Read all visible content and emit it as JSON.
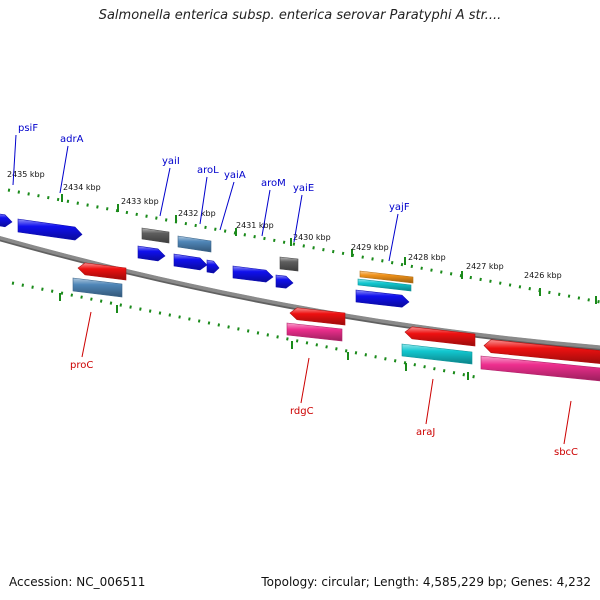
{
  "title": "Salmonella enterica subsp. enterica serovar Paratyphi A str....",
  "footer": {
    "accession": "Accession: NC_006511",
    "summary": "Topology: circular; Length: 4,585,229 bp; Genes: 4,232"
  },
  "colors": {
    "forward_label": "#0000cc",
    "reverse_label": "#cc0000",
    "backbone": "#8a8a8a",
    "scale_ticks": "#1a8a1a",
    "blue": "#1010ee",
    "steel": "#4f86b8",
    "gray": "#5e5e5e",
    "red": "#ee1111",
    "pink": "#ee2f8e",
    "cyan": "#12c8d0",
    "orange": "#f0921a"
  },
  "scale_labels": [
    "2435 kbp",
    "2434 kbp",
    "2433 kbp",
    "2432 kbp",
    "2431 kbp",
    "2430 kbp",
    "2429 kbp",
    "2428 kbp",
    "2427 kbp",
    "2426 kbp"
  ],
  "forward_genes": [
    "psiF",
    "adrA",
    "yaiI",
    "aroL",
    "yaiA",
    "aroM",
    "yaiE",
    "yajF"
  ],
  "reverse_genes": [
    "proC",
    "rdgC",
    "araJ",
    "sbcC"
  ]
}
